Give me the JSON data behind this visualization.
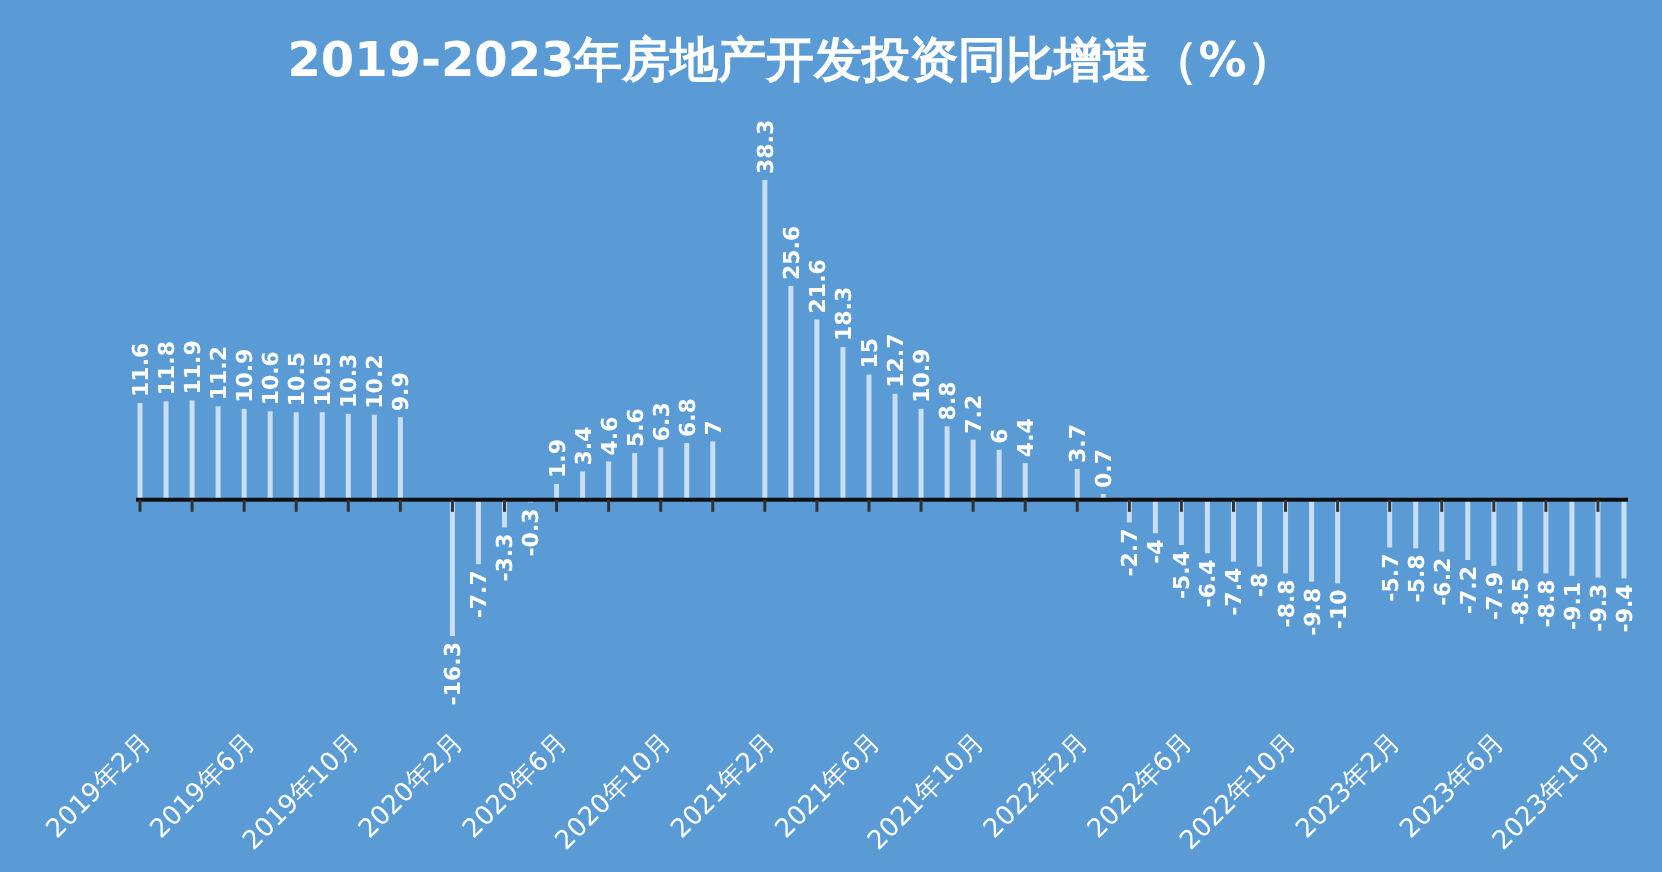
{
  "chart_data": {
    "type": "bar",
    "title": "2019-2023年房地产开发投资同比增速（%）",
    "categories": [
      "2019年2月",
      null,
      null,
      null,
      "2019年6月",
      null,
      null,
      null,
      "2019年10月",
      null,
      null,
      null,
      "2020年2月",
      null,
      null,
      null,
      "2020年6月",
      null,
      null,
      null,
      "2020年10月",
      null,
      null,
      null,
      "2021年2月",
      null,
      null,
      null,
      "2021年6月",
      null,
      null,
      null,
      "2021年10月",
      null,
      null,
      null,
      "2022年2月",
      null,
      null,
      null,
      "2022年6月",
      null,
      null,
      null,
      "2022年10月",
      null,
      null,
      null,
      "2023年2月",
      null,
      null,
      null,
      "2023年6月",
      null,
      null,
      null,
      "2023年10月",
      null
    ],
    "values": [
      11.6,
      11.8,
      11.9,
      11.2,
      10.9,
      10.6,
      10.5,
      10.5,
      10.3,
      10.2,
      9.9,
      null,
      -16.3,
      -7.7,
      -3.3,
      -0.3,
      1.9,
      3.4,
      4.6,
      5.6,
      6.3,
      6.8,
      7,
      null,
      38.3,
      25.6,
      21.6,
      18.3,
      15,
      12.7,
      10.9,
      8.8,
      7.2,
      6,
      4.4,
      null,
      3.7,
      0.7,
      -2.7,
      -4,
      -5.4,
      -6.4,
      -7.4,
      -8,
      -8.8,
      -9.8,
      -10,
      null,
      -5.7,
      -5.8,
      -6.2,
      -7.2,
      -7.9,
      -8.5,
      -8.8,
      -9.1,
      -9.3,
      -9.4
    ],
    "color": "#c9def3",
    "data_labels": true
  }
}
